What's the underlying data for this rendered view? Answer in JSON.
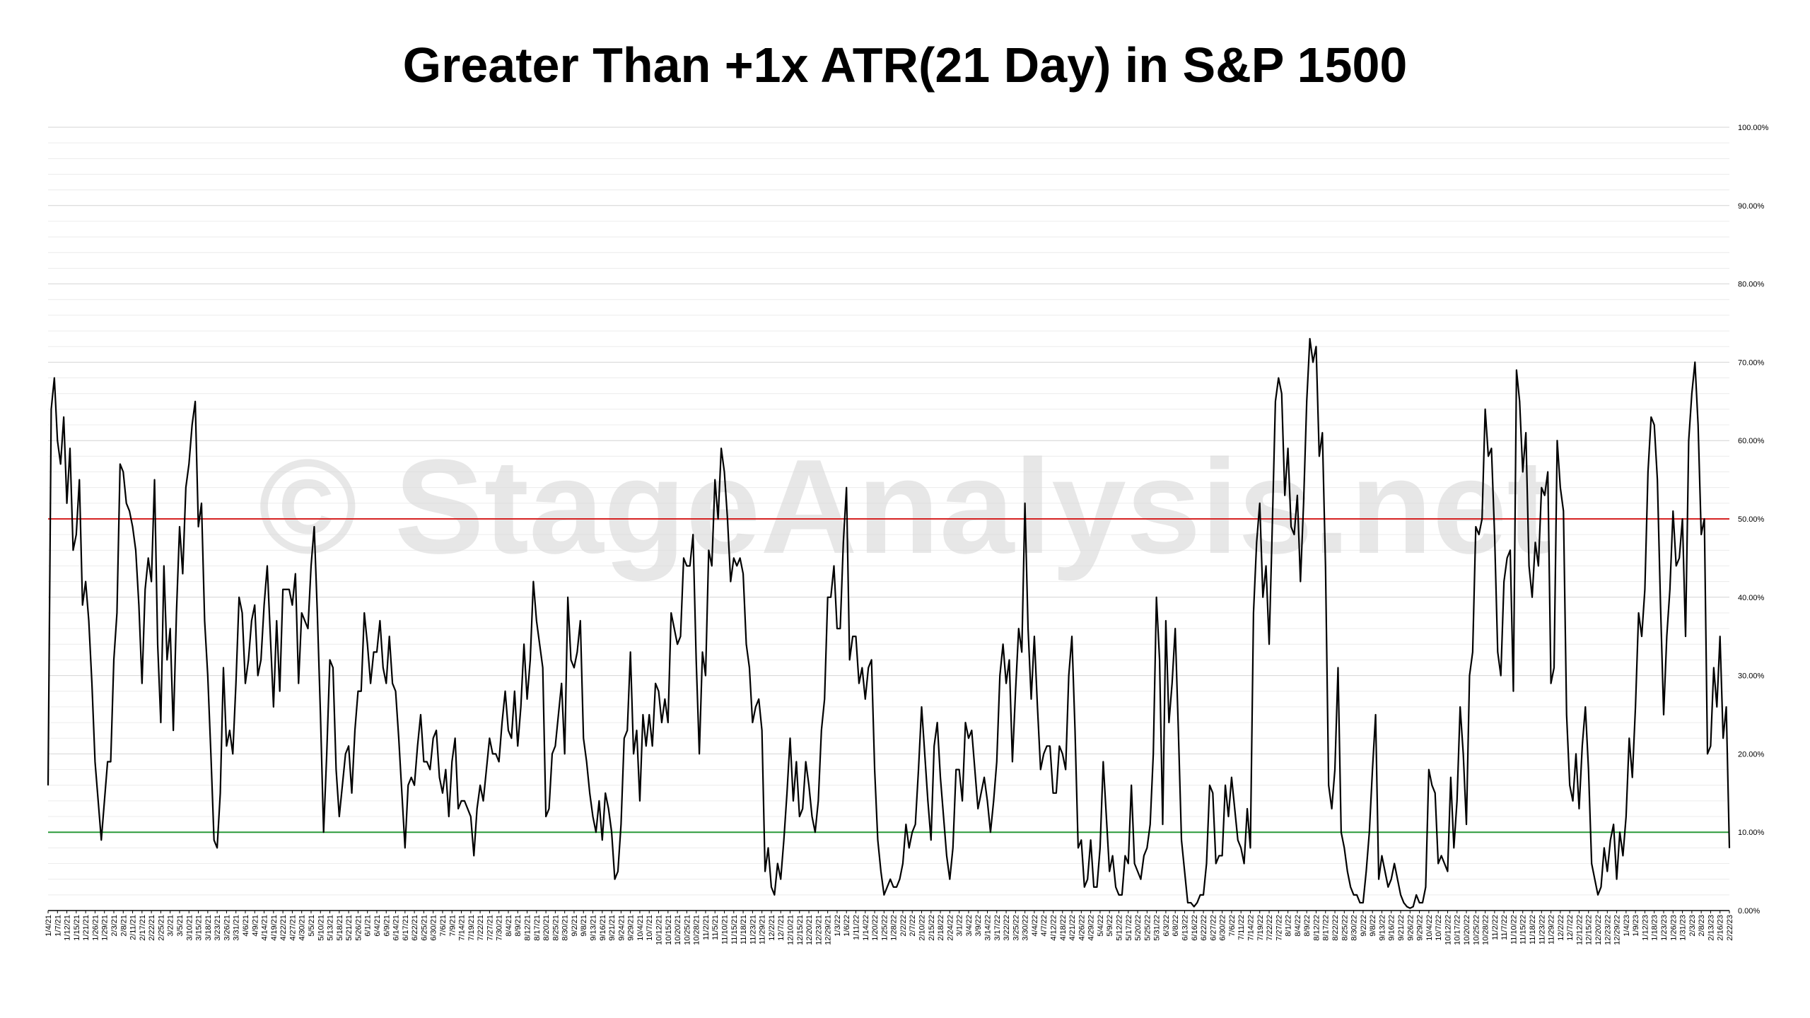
{
  "chart_data": {
    "type": "line",
    "title": "Greater Than +1x ATR(21 Day) in S&P 1500",
    "watermark": "© StageAnalysis.net",
    "y_axis": {
      "min": 0,
      "max": 100,
      "position": "right",
      "tick_labels": [
        "0.00%",
        "10.00%",
        "20.00%",
        "30.00%",
        "40.00%",
        "50.00%",
        "60.00%",
        "70.00%",
        "80.00%",
        "90.00%",
        "100.00%"
      ]
    },
    "grid": "horizontal",
    "reference_lines": [
      {
        "value": 50,
        "color": "#d62424"
      },
      {
        "value": 10,
        "color": "#2c9a3a"
      }
    ],
    "line_color": "#000000",
    "x_tick_labels": [
      "1/4/21",
      "1/7/21",
      "1/12/21",
      "1/15/21",
      "1/21/21",
      "1/26/21",
      "1/29/21",
      "2/3/21",
      "2/8/21",
      "2/11/21",
      "2/17/21",
      "2/22/21",
      "2/25/21",
      "3/2/21",
      "3/5/21",
      "3/10/21",
      "3/15/21",
      "3/18/21",
      "3/23/21",
      "3/26/21",
      "3/31/21",
      "4/6/21",
      "4/9/21",
      "4/14/21",
      "4/19/21",
      "4/22/21",
      "4/27/21",
      "4/30/21",
      "5/5/21",
      "5/10/21",
      "5/13/21",
      "5/18/21",
      "5/21/21",
      "5/26/21",
      "6/1/21",
      "6/4/21",
      "6/9/21",
      "6/14/21",
      "6/17/21",
      "6/22/21",
      "6/25/21",
      "6/30/21",
      "7/6/21",
      "7/9/21",
      "7/14/21",
      "7/19/21",
      "7/22/21",
      "7/27/21",
      "7/30/21",
      "8/4/21",
      "8/9/21",
      "8/12/21",
      "8/17/21",
      "8/20/21",
      "8/25/21",
      "8/30/21",
      "9/2/21",
      "9/8/21",
      "9/13/21",
      "9/16/21",
      "9/21/21",
      "9/24/21",
      "9/29/21",
      "10/4/21",
      "10/7/21",
      "10/12/21",
      "10/15/21",
      "10/20/21",
      "10/25/21",
      "10/28/21",
      "11/2/21",
      "11/5/21",
      "11/10/21",
      "11/15/21",
      "11/18/21",
      "11/23/21",
      "11/29/21",
      "12/2/21",
      "12/7/21",
      "12/10/21",
      "12/15/21",
      "12/20/21",
      "12/23/21",
      "12/29/21",
      "1/3/22",
      "1/6/22",
      "1/11/22",
      "1/14/22",
      "1/20/22",
      "1/25/22",
      "1/28/22",
      "2/2/22",
      "2/7/22",
      "2/10/22",
      "2/15/22",
      "2/18/22",
      "2/24/22",
      "3/1/22",
      "3/4/22",
      "3/9/22",
      "3/14/22",
      "3/17/22",
      "3/22/22",
      "3/25/22",
      "3/30/22",
      "4/4/22",
      "4/7/22",
      "4/12/22",
      "4/18/22",
      "4/21/22",
      "4/26/22",
      "4/29/22",
      "5/4/22",
      "5/9/22",
      "5/12/22",
      "5/17/22",
      "5/20/22",
      "5/25/22",
      "5/31/22",
      "6/3/22",
      "6/8/22",
      "6/13/22",
      "6/16/22",
      "6/22/22",
      "6/27/22",
      "6/30/22",
      "7/6/22",
      "7/11/22",
      "7/14/22",
      "7/19/22",
      "7/22/22",
      "7/27/22",
      "8/1/22",
      "8/4/22",
      "8/9/22",
      "8/12/22",
      "8/17/22",
      "8/22/22",
      "8/25/22",
      "8/30/22",
      "9/2/22",
      "9/8/22",
      "9/13/22",
      "9/16/22",
      "9/21/22",
      "9/26/22",
      "9/29/22",
      "10/4/22",
      "10/7/22",
      "10/12/22",
      "10/17/22",
      "10/20/22",
      "10/25/22",
      "10/28/22",
      "11/2/22",
      "11/7/22",
      "11/10/22",
      "11/15/22",
      "11/18/22",
      "11/23/22",
      "11/29/22",
      "12/2/22",
      "12/7/22",
      "12/12/22",
      "12/15/22",
      "12/20/22",
      "12/23/22",
      "12/29/22",
      "1/4/23",
      "1/9/23",
      "1/12/23",
      "1/18/23",
      "1/23/23",
      "1/26/23",
      "1/31/23",
      "2/3/23",
      "2/8/23",
      "2/13/23",
      "2/16/23",
      "2/22/23"
    ],
    "series": [
      {
        "values": [
          16,
          64,
          68,
          60,
          57,
          63,
          52,
          59,
          46,
          48,
          55,
          39,
          42,
          37,
          29,
          19,
          14,
          9,
          14,
          19,
          19,
          32,
          38,
          57,
          56,
          52,
          51,
          49,
          46,
          39,
          29,
          41,
          45,
          42,
          55,
          34,
          24,
          44,
          32,
          36,
          23,
          38,
          49,
          43,
          54,
          57,
          62,
          65,
          49,
          52,
          37,
          30,
          20,
          9,
          8,
          15,
          31,
          21,
          23,
          20,
          29,
          40,
          38,
          29,
          32,
          37,
          39,
          30,
          32,
          39,
          44,
          35,
          26,
          37,
          28,
          41,
          41,
          41,
          39,
          43,
          29,
          38,
          37,
          36,
          44,
          49,
          38,
          25,
          10,
          20,
          32,
          31,
          18,
          12,
          16,
          20,
          21,
          15,
          23,
          28,
          28,
          38,
          34,
          29,
          33,
          33,
          37,
          31,
          29,
          35,
          29,
          28,
          22,
          15,
          8,
          16,
          17,
          16,
          21,
          25,
          19,
          19,
          18,
          22,
          23,
          17,
          15,
          18,
          12,
          19,
          22,
          13,
          14,
          14,
          13,
          12,
          7,
          13,
          16,
          14,
          18,
          22,
          20,
          20,
          19,
          24,
          28,
          23,
          22,
          28,
          21,
          26,
          34,
          27,
          32,
          42,
          37,
          34,
          31,
          12,
          13,
          20,
          21,
          25,
          29,
          20,
          40,
          32,
          31,
          33,
          37,
          22,
          19,
          15,
          12,
          10,
          14,
          9,
          15,
          13,
          10,
          4,
          5,
          11,
          22,
          23,
          33,
          20,
          23,
          14,
          25,
          21,
          25,
          21,
          29,
          28,
          24,
          27,
          24,
          38,
          36,
          34,
          35,
          45,
          44,
          44,
          48,
          32,
          20,
          33,
          30,
          46,
          44,
          55,
          50,
          59,
          56,
          50,
          42,
          45,
          44,
          45,
          43,
          34,
          31,
          24,
          26,
          27,
          23,
          5,
          8,
          3,
          2,
          6,
          4,
          9,
          15,
          22,
          14,
          19,
          12,
          13,
          19,
          16,
          12,
          10,
          14,
          23,
          27,
          40,
          40,
          44,
          36,
          36,
          47,
          54,
          32,
          35,
          35,
          29,
          31,
          27,
          31,
          32,
          18,
          9,
          5,
          2,
          3,
          4,
          3,
          3,
          4,
          6,
          11,
          8,
          10,
          11,
          18,
          26,
          20,
          14,
          9,
          21,
          24,
          17,
          12,
          7,
          4,
          8,
          18,
          18,
          14,
          24,
          22,
          23,
          18,
          13,
          15,
          17,
          14,
          10,
          14,
          19,
          30,
          34,
          29,
          32,
          19,
          28,
          36,
          33,
          52,
          36,
          27,
          35,
          26,
          18,
          20,
          21,
          21,
          15,
          15,
          21,
          20,
          18,
          30,
          35,
          23,
          8,
          9,
          3,
          4,
          9,
          3,
          3,
          8,
          19,
          12,
          5,
          7,
          3,
          2,
          2,
          7,
          6,
          16,
          6,
          5,
          4,
          7,
          8,
          11,
          20,
          40,
          32,
          11,
          37,
          24,
          29,
          36,
          23,
          9,
          5,
          1,
          1,
          0.5,
          1,
          2,
          2,
          6,
          16,
          15,
          6,
          7,
          7,
          16,
          12,
          17,
          13,
          9,
          8,
          6,
          13,
          8,
          38,
          47,
          52,
          40,
          44,
          34,
          49,
          65,
          68,
          66,
          53,
          59,
          49,
          48,
          53,
          42,
          52,
          65,
          73,
          70,
          72,
          58,
          61,
          44,
          16,
          13,
          18,
          31,
          10,
          8,
          5,
          3,
          2,
          2,
          1,
          1,
          5,
          10,
          18,
          25,
          4,
          7,
          5,
          3,
          4,
          6,
          4,
          2,
          1,
          0.5,
          0.3,
          0.5,
          2,
          1,
          1,
          3,
          18,
          16,
          15,
          6,
          7,
          6,
          5,
          17,
          8,
          14,
          26,
          20,
          11,
          30,
          33,
          49,
          48,
          50,
          64,
          58,
          59,
          48,
          33,
          30,
          42,
          45,
          46,
          28,
          69,
          65,
          56,
          61,
          44,
          40,
          47,
          44,
          54,
          53,
          56,
          29,
          31,
          60,
          54,
          51,
          25,
          16,
          14,
          20,
          13,
          21,
          26,
          18,
          6,
          4,
          2,
          3,
          8,
          5,
          9,
          11,
          4,
          10,
          7,
          12,
          22,
          17,
          26,
          38,
          35,
          41,
          56,
          63,
          62,
          55,
          39,
          25,
          35,
          41,
          51,
          44,
          45,
          50,
          35,
          60,
          66,
          70,
          62,
          48,
          50,
          20,
          21,
          31,
          26,
          35,
          22,
          26,
          8
        ]
      }
    ]
  }
}
